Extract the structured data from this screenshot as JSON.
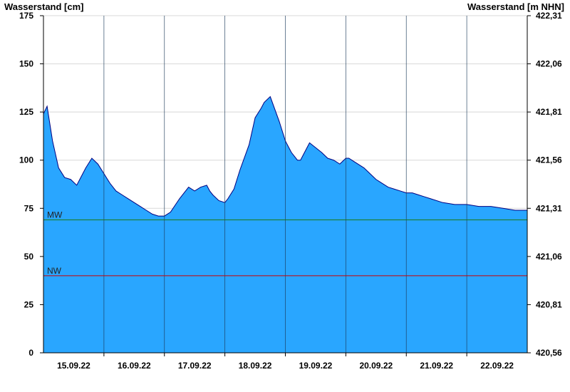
{
  "chart_data": {
    "type": "area",
    "ylabel_left": "Wasserstand [cm]",
    "ylabel_right": "Wasserstand [m NHN]",
    "ylim": [
      0,
      175
    ],
    "y_ticks": [
      0,
      25,
      50,
      75,
      100,
      125,
      150,
      175
    ],
    "y_ticks_right": [
      "420,56",
      "420,81",
      "421,06",
      "421,31",
      "421,56",
      "421,81",
      "422,06",
      "422,31"
    ],
    "x_range_days": [
      0,
      8
    ],
    "x_tick_labels": [
      "15.09.22",
      "16.09.22",
      "17.09.22",
      "18.09.22",
      "19.09.22",
      "20.09.22",
      "21.09.22",
      "22.09.22"
    ],
    "x_day_boundaries": [
      1,
      2,
      3,
      4,
      5,
      6,
      7
    ],
    "grid": true,
    "reference_lines": [
      {
        "name": "MW",
        "value": 69,
        "color": "#1a7a1a"
      },
      {
        "name": "NW",
        "value": 40,
        "color": "#cc0000"
      }
    ],
    "colors": {
      "fill": "#29a6ff",
      "line": "#000080"
    },
    "series": [
      {
        "x": [
          0,
          0.06,
          0.15,
          0.25,
          0.35,
          0.45,
          0.55,
          0.6,
          0.7,
          0.8,
          0.9,
          1.0,
          1.1,
          1.2,
          1.3,
          1.4,
          1.5,
          1.6,
          1.7,
          1.8,
          1.9,
          2.0,
          2.1,
          2.25,
          2.4,
          2.5,
          2.6,
          2.7,
          2.75,
          2.8,
          2.9,
          3.0,
          3.05,
          3.15,
          3.25,
          3.4,
          3.5,
          3.6,
          3.65,
          3.75,
          3.9,
          4.0,
          4.1,
          4.2,
          4.25,
          4.35,
          4.4,
          4.6,
          4.7,
          4.8,
          4.9,
          5.0,
          5.05,
          5.15,
          5.3,
          5.4,
          5.5,
          5.6,
          5.7,
          5.8,
          5.9,
          6.0,
          6.1,
          6.2,
          6.3,
          6.4,
          6.6,
          6.8,
          7.0,
          7.2,
          7.4,
          7.6,
          7.8,
          8.0
        ],
        "values": [
          124,
          128,
          110,
          96,
          91,
          90,
          87,
          90,
          96,
          101,
          98,
          93,
          88,
          84,
          82,
          80,
          78,
          76,
          74,
          72,
          71,
          71,
          73,
          80,
          86,
          84,
          86,
          87,
          84,
          82,
          79,
          78,
          80,
          85,
          95,
          108,
          122,
          127,
          130,
          133,
          120,
          110,
          104,
          100,
          100,
          106,
          109,
          104,
          101,
          100,
          98,
          101,
          101,
          99,
          96,
          93,
          90,
          88,
          86,
          85,
          84,
          83,
          83,
          82,
          81,
          80,
          78,
          77,
          77,
          76,
          76,
          75,
          74,
          74
        ]
      }
    ]
  }
}
